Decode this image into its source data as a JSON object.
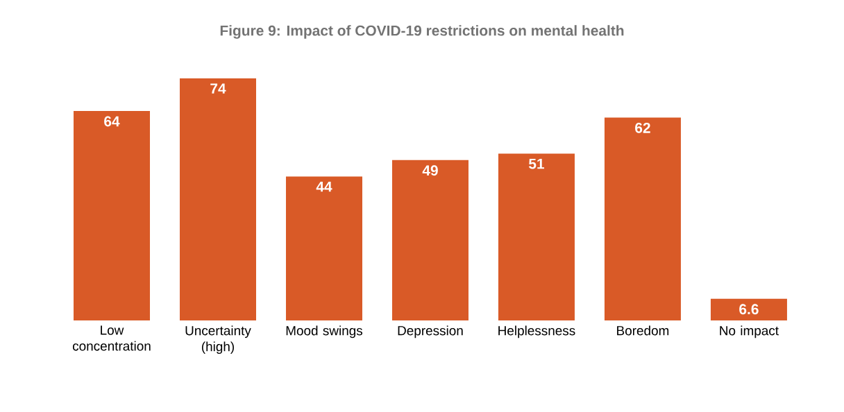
{
  "chart_data": {
    "type": "bar",
    "title": "Figure 9: Impact of COVID-19 restrictions on mental health",
    "categories": [
      "Low concentration",
      "Uncertainty (high)",
      "Mood swings",
      "Depression",
      "Helplessness",
      "Boredom",
      "No impact"
    ],
    "values": [
      64,
      74,
      44,
      49,
      51,
      62,
      6.6
    ],
    "color": "#d95a27",
    "data_labels": true
  }
}
